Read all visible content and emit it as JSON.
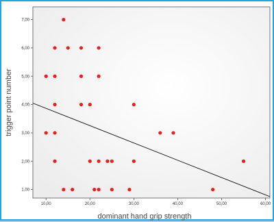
{
  "chart_data": {
    "type": "scatter",
    "title": "",
    "xlabel": "dominant hand grip strength",
    "ylabel": "trigger point number",
    "xlim": [
      7,
      61
    ],
    "ylim": [
      0.7,
      7.45
    ],
    "x_ticks": [
      10,
      20,
      30,
      40,
      50,
      60
    ],
    "x_tick_labels": [
      "10,00",
      "20,00",
      "30,00",
      "40,00",
      "50,00",
      "60,00"
    ],
    "y_ticks": [
      1,
      2,
      3,
      4,
      5,
      6,
      7
    ],
    "y_tick_labels": [
      "1,00",
      "2,00",
      "3,00",
      "4,00",
      "5,00",
      "6,00",
      "7,00"
    ],
    "grid": false,
    "legend": "none",
    "series": [
      {
        "points": [
          [
            14,
            7
          ],
          [
            12,
            6
          ],
          [
            15,
            6
          ],
          [
            18,
            6
          ],
          [
            22,
            6
          ],
          [
            10,
            5
          ],
          [
            12,
            5
          ],
          [
            18,
            5
          ],
          [
            22,
            5
          ],
          [
            12,
            4
          ],
          [
            18,
            4
          ],
          [
            20,
            4
          ],
          [
            30,
            4
          ],
          [
            10,
            3
          ],
          [
            12,
            3
          ],
          [
            36,
            3
          ],
          [
            39,
            3
          ],
          [
            12,
            2
          ],
          [
            20,
            2
          ],
          [
            22,
            2
          ],
          [
            24,
            2
          ],
          [
            25,
            2
          ],
          [
            30,
            2
          ],
          [
            55,
            2
          ],
          [
            14,
            1
          ],
          [
            16,
            1
          ],
          [
            21,
            1
          ],
          [
            22,
            1
          ],
          [
            25,
            1
          ],
          [
            29,
            1
          ],
          [
            48,
            1
          ]
        ]
      }
    ],
    "fit_line": {
      "x": [
        7,
        61
      ],
      "y": [
        4.05,
        0.75
      ]
    },
    "colors": {
      "point": "#e8201e",
      "line": "#222222",
      "frame_border": "#1fa8e0",
      "page_background": "#9ad3ea",
      "plot_background": "#f7f7f7"
    }
  }
}
